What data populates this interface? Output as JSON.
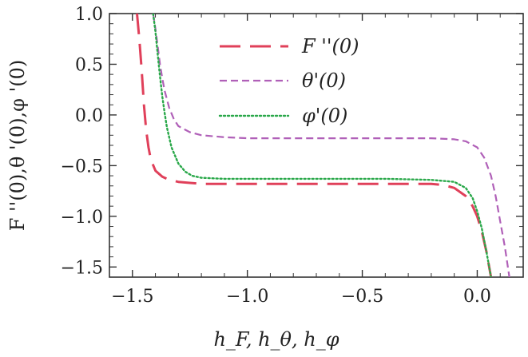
{
  "chart_data": {
    "type": "line",
    "title": "",
    "xlabel": "h_F, h_θ, h_φ",
    "ylabel": "F ''(0),θ '(0),φ '(0)",
    "xlim": [
      -1.6,
      0.2
    ],
    "ylim": [
      -1.6,
      1.0
    ],
    "x_ticks": [
      -1.5,
      -1.0,
      -0.5,
      0.0
    ],
    "x_tick_labels": [
      "−1.5",
      "−1.0",
      "−0.5",
      "0.0"
    ],
    "y_ticks": [
      1.0,
      0.5,
      0.0,
      -0.5,
      -1.0,
      -1.5
    ],
    "y_tick_labels": [
      "1.0",
      "0.5",
      "0.0",
      "−0.5",
      "−1.0",
      "−1.5"
    ],
    "grid": false,
    "legend_position": "top-right",
    "series": [
      {
        "name": "F ''(0)",
        "color": "#e0405a",
        "style": "long-dash",
        "x": [
          -1.48,
          -1.47,
          -1.46,
          -1.45,
          -1.44,
          -1.43,
          -1.42,
          -1.4,
          -1.37,
          -1.34,
          -1.3,
          -1.25,
          -1.2,
          -1.0,
          -0.8,
          -0.6,
          -0.4,
          -0.2,
          -0.15,
          -0.1,
          -0.05,
          -0.02,
          0.0,
          0.02,
          0.04,
          0.06
        ],
        "y": [
          1.0,
          0.75,
          0.45,
          0.1,
          -0.15,
          -0.32,
          -0.44,
          -0.55,
          -0.61,
          -0.64,
          -0.66,
          -0.67,
          -0.68,
          -0.68,
          -0.68,
          -0.68,
          -0.68,
          -0.68,
          -0.69,
          -0.72,
          -0.8,
          -0.9,
          -1.0,
          -1.15,
          -1.35,
          -1.6
        ]
      },
      {
        "name": "θ'(0)",
        "color": "#b060b8",
        "style": "short-dash",
        "x": [
          -1.41,
          -1.4,
          -1.39,
          -1.38,
          -1.37,
          -1.36,
          -1.34,
          -1.32,
          -1.3,
          -1.25,
          -1.2,
          -1.1,
          -1.0,
          -0.8,
          -0.6,
          -0.4,
          -0.2,
          -0.1,
          -0.05,
          0.0,
          0.03,
          0.06,
          0.08,
          0.1,
          0.12,
          0.14
        ],
        "y": [
          1.0,
          0.85,
          0.68,
          0.5,
          0.36,
          0.24,
          0.07,
          -0.04,
          -0.11,
          -0.17,
          -0.2,
          -0.22,
          -0.23,
          -0.23,
          -0.23,
          -0.23,
          -0.23,
          -0.24,
          -0.26,
          -0.32,
          -0.42,
          -0.6,
          -0.8,
          -1.05,
          -1.3,
          -1.6
        ]
      },
      {
        "name": "φ'(0)",
        "color": "#2aa84a",
        "style": "dotted",
        "x": [
          -1.41,
          -1.4,
          -1.39,
          -1.38,
          -1.37,
          -1.36,
          -1.35,
          -1.33,
          -1.3,
          -1.27,
          -1.24,
          -1.2,
          -1.1,
          -1.0,
          -0.8,
          -0.6,
          -0.4,
          -0.2,
          -0.1,
          -0.05,
          -0.02,
          0.0,
          0.02,
          0.04,
          0.06
        ],
        "y": [
          1.0,
          0.82,
          0.6,
          0.38,
          0.18,
          0.02,
          -0.12,
          -0.32,
          -0.48,
          -0.56,
          -0.6,
          -0.62,
          -0.63,
          -0.63,
          -0.63,
          -0.63,
          -0.63,
          -0.64,
          -0.66,
          -0.72,
          -0.82,
          -0.95,
          -1.12,
          -1.35,
          -1.6
        ]
      }
    ]
  },
  "legend": {
    "items": [
      {
        "label": "F ''(0)",
        "color": "#e0405a",
        "style": "long-dash"
      },
      {
        "label": "θ'(0)",
        "color": "#b060b8",
        "style": "short-dash"
      },
      {
        "label": "φ'(0)",
        "color": "#2aa84a",
        "style": "dotted"
      }
    ]
  }
}
